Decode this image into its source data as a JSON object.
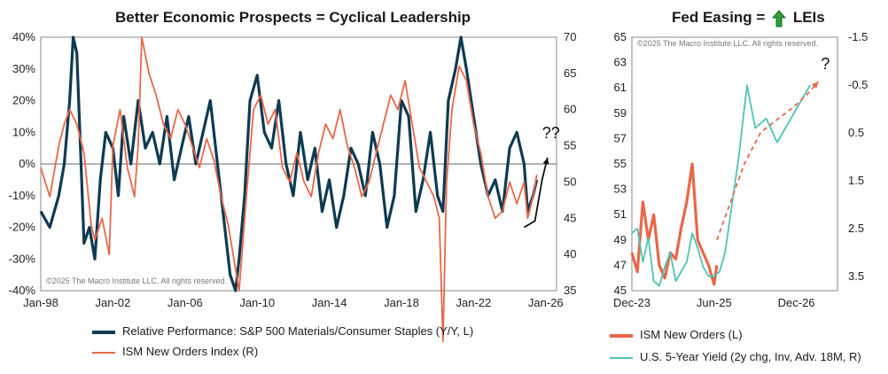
{
  "titles": {
    "left": "Better Economic Prospects = Cyclical Leadership",
    "right_pre": "Fed Easing =",
    "right_post": "LEIs",
    "right_icon": "green-up-arrow-icon"
  },
  "copyright": "©2025 The Macro Institute LLC. All rights reserved.",
  "colors": {
    "navy": "#0e3a52",
    "orange": "#e8674a",
    "teal": "#4fc3b3",
    "arrow_green": "#2e9e3e"
  },
  "chart_data": [
    {
      "type": "line",
      "x_ticks": [
        "Jan-98",
        "Jan-02",
        "Jan-06",
        "Jan-10",
        "Jan-14",
        "Jan-18",
        "Jan-22",
        "Jan-26"
      ],
      "x_range": [
        1998.0,
        2026.6
      ],
      "y_left": {
        "ticks": [
          "40%",
          "30%",
          "20%",
          "10%",
          "0%",
          "-10%",
          "-20%",
          "-30%",
          "-40%"
        ],
        "range": [
          -40,
          40
        ]
      },
      "y_right": {
        "ticks": [
          "70",
          "65",
          "60",
          "55",
          "50",
          "45",
          "40",
          "35"
        ],
        "range": [
          35,
          70
        ]
      },
      "annotation": "??",
      "series": [
        {
          "name": "Relative Performance: S&P 500 Materials/Consumer Staples (Y/Y, L)",
          "axis": "left",
          "color": "#0e3a52",
          "x": [
            1998.0,
            1998.5,
            1999.0,
            1999.3,
            1999.6,
            1999.8,
            2000.0,
            2000.2,
            2000.4,
            2000.7,
            2001.0,
            2001.3,
            2001.6,
            2002.0,
            2002.3,
            2002.6,
            2003.0,
            2003.4,
            2003.8,
            2004.2,
            2004.6,
            2005.0,
            2005.4,
            2005.8,
            2006.2,
            2006.6,
            2007.0,
            2007.4,
            2007.8,
            2008.2,
            2008.5,
            2008.8,
            2009.0,
            2009.3,
            2009.6,
            2010.0,
            2010.4,
            2010.8,
            2011.2,
            2011.6,
            2012.0,
            2012.4,
            2012.8,
            2013.2,
            2013.6,
            2014.0,
            2014.4,
            2014.8,
            2015.2,
            2015.6,
            2016.0,
            2016.4,
            2016.8,
            2017.2,
            2017.6,
            2018.0,
            2018.4,
            2018.8,
            2019.2,
            2019.6,
            2020.0,
            2020.3,
            2020.6,
            2021.0,
            2021.3,
            2021.6,
            2022.0,
            2022.4,
            2022.8,
            2023.2,
            2023.6,
            2024.0,
            2024.4,
            2024.8,
            2025.0,
            2025.3,
            2025.5
          ],
          "y": [
            -15,
            -20,
            -10,
            0,
            20,
            40,
            35,
            5,
            -25,
            -20,
            -30,
            -5,
            10,
            5,
            -10,
            15,
            0,
            20,
            5,
            10,
            0,
            15,
            -5,
            5,
            15,
            0,
            10,
            20,
            0,
            -20,
            -35,
            -40,
            -30,
            -10,
            20,
            28,
            10,
            5,
            20,
            0,
            -10,
            10,
            -5,
            5,
            -15,
            -5,
            -20,
            -10,
            5,
            0,
            -10,
            10,
            0,
            -20,
            -10,
            20,
            15,
            -15,
            -5,
            10,
            -10,
            -15,
            20,
            30,
            40,
            30,
            15,
            0,
            -10,
            -5,
            -15,
            5,
            10,
            0,
            -15,
            -10,
            -5
          ]
        },
        {
          "name": "ISM New Orders Index (R)",
          "axis": "right",
          "color": "#e8674a",
          "x": [
            1998.0,
            1998.5,
            1999.0,
            1999.3,
            1999.6,
            2000.0,
            2000.4,
            2000.8,
            2001.0,
            2001.4,
            2001.8,
            2002.0,
            2002.4,
            2002.8,
            2003.2,
            2003.4,
            2003.6,
            2004.0,
            2004.4,
            2004.8,
            2005.2,
            2005.6,
            2006.0,
            2006.4,
            2006.8,
            2007.2,
            2007.6,
            2008.0,
            2008.4,
            2008.8,
            2009.0,
            2009.4,
            2009.8,
            2010.2,
            2010.6,
            2011.0,
            2011.4,
            2011.8,
            2012.2,
            2012.6,
            2013.0,
            2013.4,
            2013.8,
            2014.2,
            2014.6,
            2015.0,
            2015.4,
            2015.8,
            2016.2,
            2016.6,
            2017.0,
            2017.4,
            2017.8,
            2018.2,
            2018.6,
            2019.0,
            2019.4,
            2019.8,
            2020.1,
            2020.3,
            2020.5,
            2020.8,
            2021.2,
            2021.6,
            2022.0,
            2022.4,
            2022.8,
            2023.2,
            2023.6,
            2024.0,
            2024.4,
            2024.8,
            2025.0,
            2025.3,
            2025.5
          ],
          "y": [
            52,
            48,
            55,
            58,
            60,
            58,
            54,
            44,
            42,
            45,
            40,
            55,
            60,
            52,
            48,
            55,
            70,
            65,
            62,
            58,
            56,
            60,
            58,
            55,
            52,
            56,
            53,
            48,
            44,
            38,
            35,
            48,
            60,
            62,
            58,
            60,
            52,
            50,
            54,
            50,
            48,
            54,
            58,
            56,
            60,
            55,
            52,
            48,
            50,
            54,
            58,
            62,
            60,
            64,
            58,
            52,
            50,
            48,
            45,
            28,
            50,
            60,
            66,
            64,
            58,
            54,
            48,
            45,
            46,
            50,
            47,
            50,
            45,
            48,
            51
          ]
        }
      ],
      "projection": {
        "description": "",
        "color": "#111111",
        "x": [
          2024.8,
          2025.4,
          2025.8,
          2026.1
        ],
        "y": [
          -20,
          -18,
          -5,
          2
        ]
      }
    },
    {
      "type": "line",
      "x_ticks": [
        "Dec-23",
        "Jun-25",
        "Dec-26"
      ],
      "x_range": [
        2023.95,
        2027.7
      ],
      "y_left": {
        "ticks": [
          "65",
          "63",
          "61",
          "59",
          "57",
          "55",
          "53",
          "51",
          "49",
          "47",
          "45"
        ],
        "range": [
          45,
          65
        ]
      },
      "y_right": {
        "ticks": [
          "-1.5",
          "-0.5",
          "0.5",
          "1.5",
          "2.5",
          "3.5"
        ],
        "range_inverted": [
          -1.5,
          3.8
        ]
      },
      "annotation": "?",
      "series": [
        {
          "name": "ISM New Orders (L)",
          "axis": "left",
          "color": "#e8674a",
          "x": [
            2023.95,
            2024.05,
            2024.15,
            2024.25,
            2024.35,
            2024.45,
            2024.55,
            2024.65,
            2024.75,
            2024.85,
            2024.95,
            2025.05,
            2025.15,
            2025.25,
            2025.35,
            2025.45,
            2025.5
          ],
          "y": [
            48,
            46.5,
            52,
            49,
            51,
            47,
            46,
            48,
            47.5,
            50,
            52,
            55,
            49,
            48,
            47,
            45.5,
            47
          ]
        },
        {
          "name": "U.S. 5-Year Yield (2y chg, Inv, Adv. 18M, R)",
          "axis": "right",
          "color": "#4fc3b3",
          "x": [
            2023.95,
            2024.05,
            2024.15,
            2024.25,
            2024.35,
            2024.45,
            2024.55,
            2024.65,
            2024.75,
            2024.85,
            2024.95,
            2025.05,
            2025.15,
            2025.25,
            2025.35,
            2025.45,
            2025.55,
            2025.65,
            2025.75,
            2025.9,
            2026.05,
            2026.2,
            2026.4,
            2026.6,
            2026.8,
            2027.0,
            2027.1,
            2027.2
          ],
          "y": [
            2.6,
            2.5,
            3.2,
            2.7,
            3.6,
            3.7,
            3.3,
            3.0,
            3.6,
            3.4,
            3.2,
            2.6,
            2.9,
            3.3,
            3.5,
            3.5,
            3.4,
            3.0,
            2.2,
            1.0,
            -0.5,
            0.4,
            0.2,
            0.7,
            0.3,
            -0.1,
            -0.3,
            -0.5
          ]
        }
      ],
      "projection": {
        "description": "",
        "color": "#e8674a",
        "dashed": true,
        "x": [
          2025.5,
          2025.75,
          2026.0,
          2026.3,
          2026.6,
          2026.9,
          2027.15,
          2027.35
        ],
        "y": [
          49,
          52,
          55,
          57.5,
          58.5,
          59.5,
          60.5,
          61.5
        ]
      }
    }
  ],
  "legend_left": [
    {
      "label": "Relative Performance: S&P 500 Materials/Consumer Staples (Y/Y, L)",
      "color": "#0e3a52"
    },
    {
      "label": "ISM New Orders Index (R)",
      "color": "#e8674a"
    }
  ],
  "legend_right": [
    {
      "label": "ISM New Orders (L)",
      "color": "#e8674a"
    },
    {
      "label": "U.S. 5-Year Yield (2y chg, Inv, Adv. 18M, R)",
      "color": "#4fc3b3"
    }
  ]
}
